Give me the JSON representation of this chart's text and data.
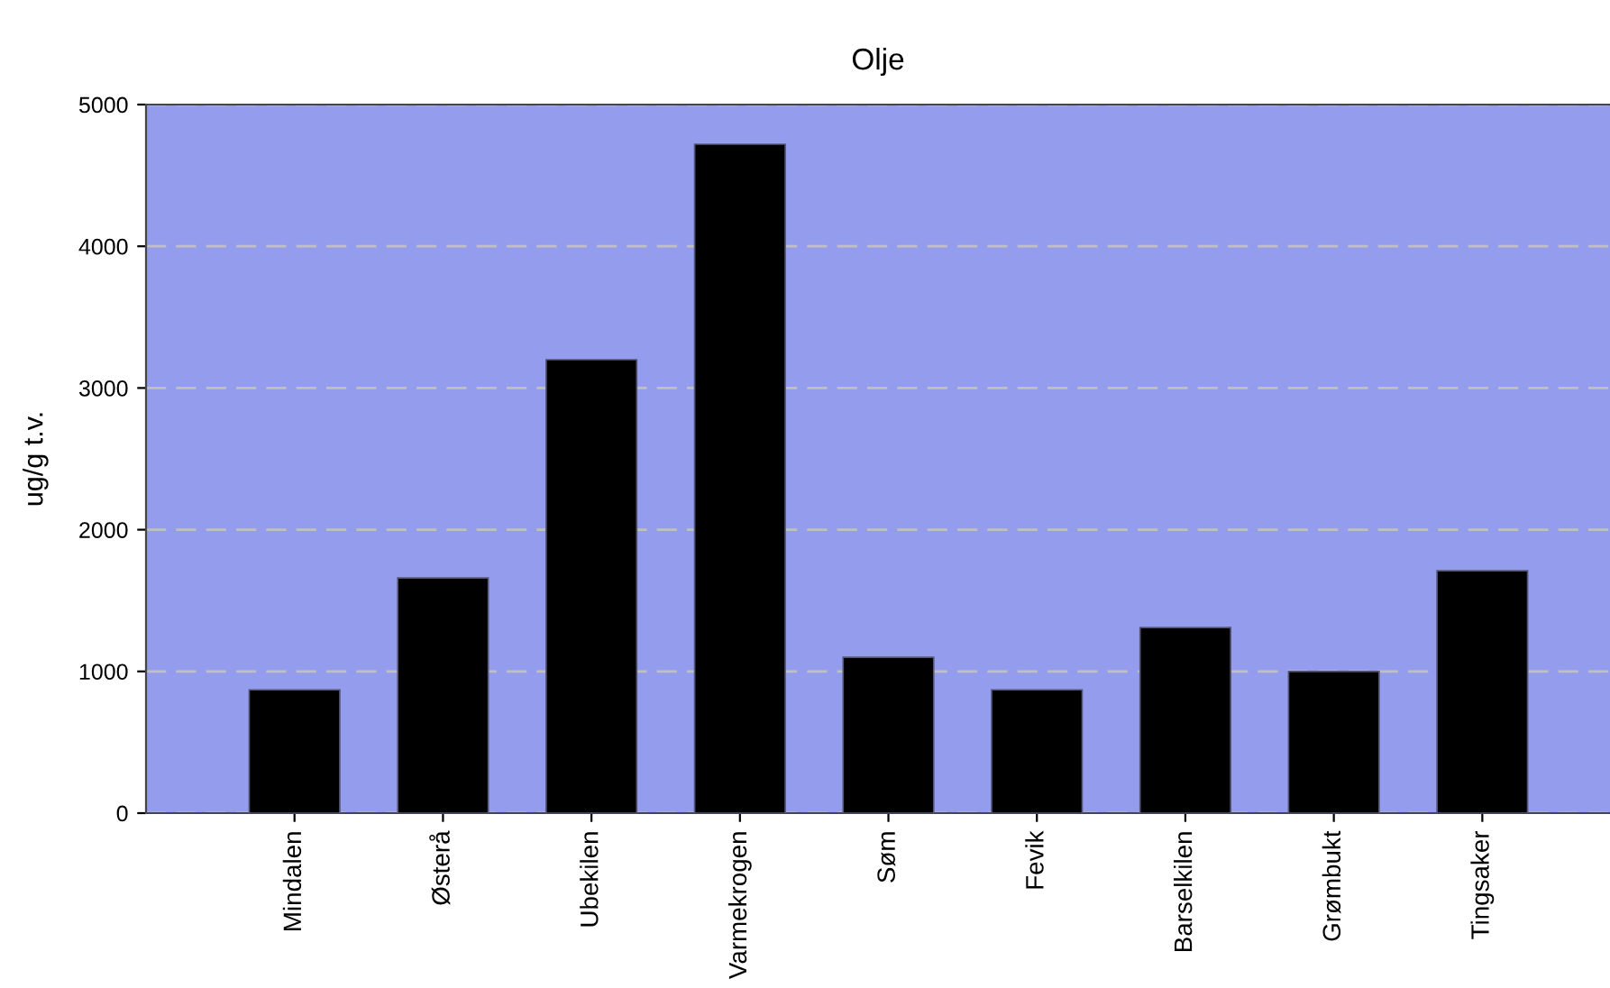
{
  "chart_data": {
    "type": "bar",
    "title": "Olje",
    "ylabel": "ug/g t.v.",
    "categories": [
      "Mindalen",
      "Østerå",
      "Ubekilen",
      "Varmekrogen",
      "Søm",
      "Fevik",
      "Barselkilen",
      "Grømbukt",
      "Tingsaker"
    ],
    "values": [
      870,
      1660,
      3200,
      4720,
      1100,
      870,
      1310,
      1000,
      1710
    ],
    "color": "#000000",
    "ylim": [
      0,
      5000
    ],
    "yticks": [
      0,
      1000,
      2000,
      3000,
      4000,
      5000
    ],
    "grid": "y",
    "legend": false
  }
}
